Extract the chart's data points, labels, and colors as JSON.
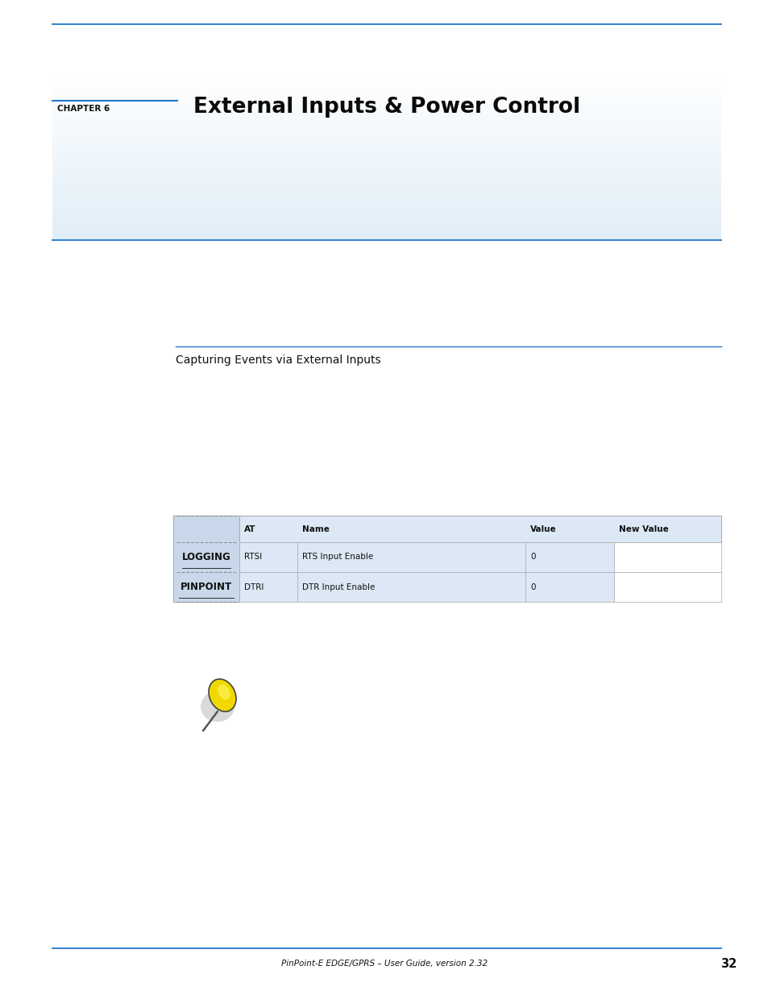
{
  "page_width": 9.54,
  "page_height": 12.35,
  "bg_color": "#ffffff",
  "blue_line_color": "#2277cc",
  "chapter_label": "CHAPTER 6",
  "chapter_title": "External Inputs & Power Control",
  "section_line_text": "Capturing Events via External Inputs",
  "table_headers": [
    "AT",
    "Name",
    "Value",
    "New Value"
  ],
  "table_rows": [
    [
      "RTSI",
      "RTS Input Enable",
      "0",
      ""
    ],
    [
      "DTRI",
      "DTR Input Enable",
      "0",
      ""
    ]
  ],
  "sidebar_labels": [
    "LOGGING",
    "PINPOINT"
  ],
  "footer_text": "PinPoint-E EDGE/GPRS – User Guide, version 2.32",
  "footer_page": "32",
  "table_header_bg": "#dce8f5",
  "table_row_bg": "#dce8f5",
  "sidebar_bg": "#c8d8ea",
  "new_value_bg": "#f0f5ff"
}
